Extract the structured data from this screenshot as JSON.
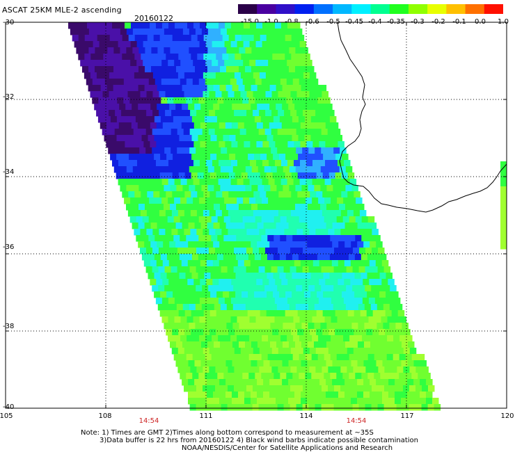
{
  "header": {
    "title": "ASCAT 25KM MLE-2 ascending",
    "date": "20160122"
  },
  "colorbar": {
    "labels": [
      "-15.0",
      "-1.0",
      "-0.8",
      "-0.6",
      "-0.5",
      "-0.45",
      "-0.4",
      "-0.35",
      "-0.3",
      "-0.2",
      "-0.1",
      "0.0",
      "1.0"
    ],
    "colors": [
      "#2a0048",
      "#4a00a0",
      "#3010c8",
      "#0020f0",
      "#0070ff",
      "#00b8ff",
      "#00f0ff",
      "#00ff90",
      "#20ff20",
      "#90ff00",
      "#e8ff00",
      "#ffc000",
      "#ff7000",
      "#ff1000"
    ]
  },
  "axes": {
    "lat_labels": [
      "-30",
      "-32",
      "-34",
      "-36",
      "-38",
      "-40"
    ],
    "lon_labels": [
      "105",
      "108",
      "111",
      "114",
      "117",
      "120"
    ],
    "lat_range": [
      -40,
      -30
    ],
    "lon_range": [
      105,
      120
    ]
  },
  "times": [
    "14:54",
    "14:54"
  ],
  "notes": [
    "Note: 1) Times are GMT 2)Times along bottom correspond to measurement at ~35S",
    "3)Data buffer is 22 hrs from 20160122 4) Black wind barbs indicate possible contamination",
    "NOAA/NESDIS/Center for Satellite Applications and Research"
  ]
}
